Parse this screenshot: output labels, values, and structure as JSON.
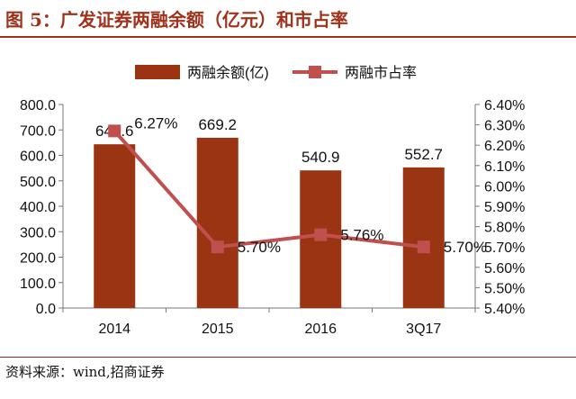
{
  "header": {
    "title": "图 5：广发证券两融余额（亿元）和市占率"
  },
  "footer": {
    "source": "资料来源：wind,招商证券"
  },
  "colors": {
    "bar": "#9b3412",
    "line": "#c0504d",
    "title": "#a0321c"
  },
  "chart_data": {
    "type": "bar",
    "categories": [
      "2014",
      "2015",
      "2016",
      "3Q17"
    ],
    "series": [
      {
        "name": "两融余额(亿)",
        "type": "bar",
        "axis": "left",
        "values": [
          643.6,
          669.2,
          540.9,
          552.7
        ],
        "labels": [
          "643.6",
          "669.2",
          "540.9",
          "552.7"
        ]
      },
      {
        "name": "两融市占率",
        "type": "line",
        "axis": "right",
        "values": [
          6.27,
          5.7,
          5.76,
          5.7
        ],
        "labels": [
          "6.27%",
          "5.70%",
          "5.76%",
          "5.70%"
        ]
      }
    ],
    "y_left": {
      "min": 0,
      "max": 800,
      "ticks": [
        "0.0",
        "100.0",
        "200.0",
        "300.0",
        "400.0",
        "500.0",
        "600.0",
        "700.0",
        "800.0"
      ]
    },
    "y_right": {
      "min": 5.4,
      "max": 6.4,
      "ticks": [
        "5.40%",
        "5.50%",
        "5.60%",
        "5.70%",
        "5.80%",
        "5.90%",
        "6.00%",
        "6.10%",
        "6.20%",
        "6.30%",
        "6.40%"
      ]
    },
    "legend_position": "top-center",
    "grid": false
  }
}
